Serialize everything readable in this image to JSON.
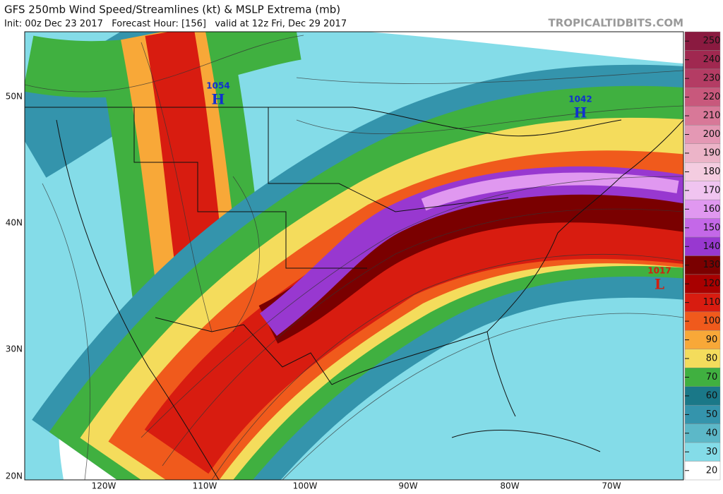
{
  "header": {
    "title": "GFS 250mb Wind Speed/Streamlines (kt) & MSLP Extrema (mb)",
    "subtitle": "Init: 00z Dec 23 2017   Forecast Hour: [156]   valid at 12z Fri, Dec 29 2017",
    "watermark": "TROPICALTIDBITS.COM"
  },
  "map": {
    "lat_labels": [
      "50N",
      "40N",
      "30N",
      "20N"
    ],
    "lon_labels": [
      "120W",
      "110W",
      "100W",
      "90W",
      "80W",
      "70W"
    ],
    "pressure_centers": [
      {
        "value": "1054",
        "symbol": "H",
        "color": "#1030d0"
      },
      {
        "value": "1042",
        "symbol": "H",
        "color": "#1030d0"
      },
      {
        "value": "1017",
        "symbol": "L",
        "color": "#d02010"
      }
    ]
  },
  "colorbar": {
    "ticks": [
      250,
      240,
      230,
      220,
      210,
      200,
      190,
      180,
      170,
      160,
      150,
      140,
      130,
      120,
      110,
      100,
      90,
      80,
      70,
      60,
      50,
      40,
      30,
      20
    ],
    "colors": [
      "#8a1a40",
      "#a02850",
      "#b43c64",
      "#c8587c",
      "#d87898",
      "#e498b4",
      "#ecb4c8",
      "#f4cce0",
      "#f0c4f0",
      "#e098f0",
      "#c468e8",
      "#9838d0",
      "#7a0000",
      "#a80000",
      "#d81c10",
      "#f05a1c",
      "#f8a838",
      "#f4dc5c",
      "#40b040",
      "#1a7888",
      "#3494ac",
      "#5cb8c8",
      "#84dce8",
      "#ffffff"
    ]
  }
}
